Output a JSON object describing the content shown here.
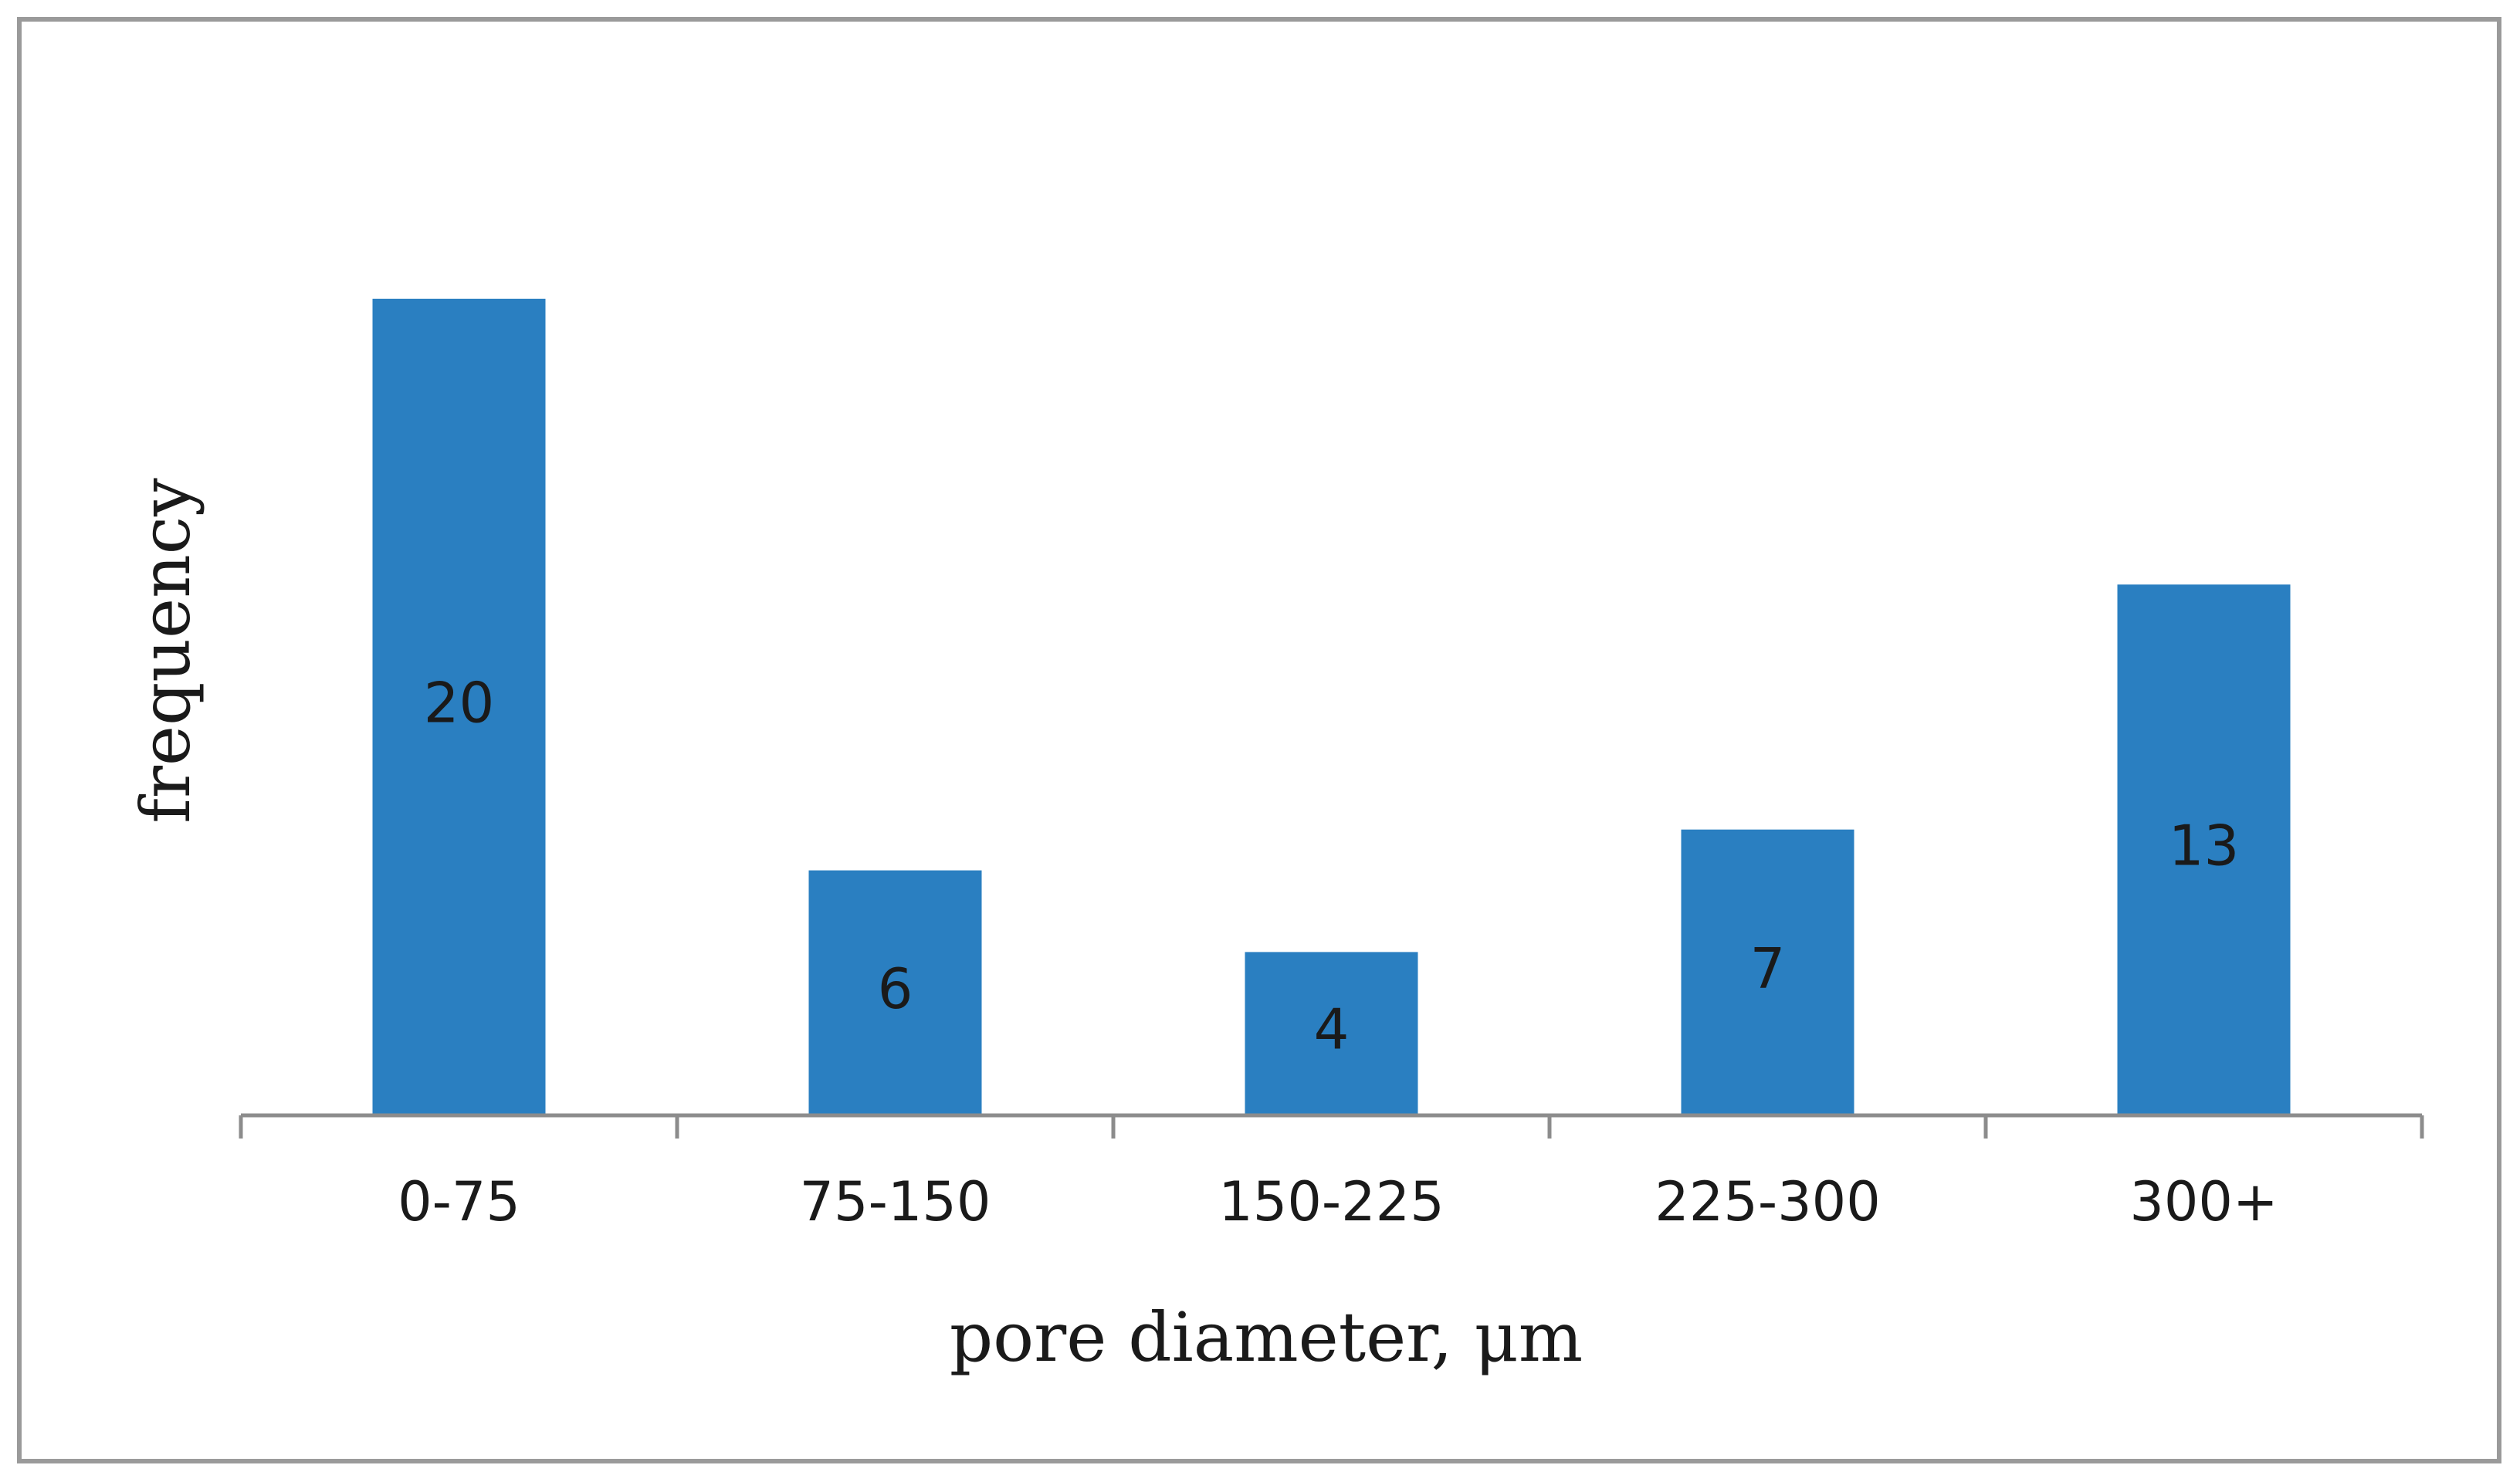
{
  "chart_data": {
    "type": "bar",
    "x_label": "pore diameter, μm",
    "y_label": "frequency",
    "categories": [
      "0-75",
      "75-150",
      "150-225",
      "225-300",
      "300+"
    ],
    "values": [
      20,
      6,
      4,
      7,
      13
    ],
    "color": "#2a7fc1"
  }
}
